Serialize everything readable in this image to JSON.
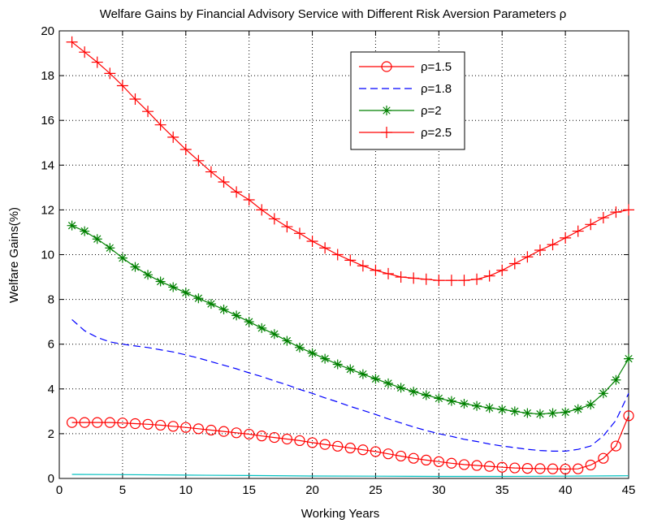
{
  "chart_data": {
    "type": "line",
    "title": "Welfare Gains by Financial Advisory Service with Different Risk Aversion Parameters ρ",
    "xlabel": "Working Years",
    "ylabel": "Welfare Gains(%)",
    "xlim": [
      0,
      45
    ],
    "ylim": [
      0,
      20
    ],
    "xticks": [
      0,
      5,
      10,
      15,
      20,
      25,
      30,
      35,
      40,
      45
    ],
    "yticks": [
      0,
      2,
      4,
      6,
      8,
      10,
      12,
      14,
      16,
      18,
      20
    ],
    "grid": true,
    "legend_position": "top-right",
    "series": [
      {
        "name": "ρ=1.5",
        "color": "#ff0000",
        "line_style": "solid",
        "marker": "circle",
        "x": [
          1,
          2,
          3,
          4,
          5,
          6,
          7,
          8,
          9,
          10,
          11,
          12,
          13,
          14,
          15,
          16,
          17,
          18,
          19,
          20,
          21,
          22,
          23,
          24,
          25,
          26,
          27,
          28,
          29,
          30,
          31,
          32,
          33,
          34,
          35,
          36,
          37,
          38,
          39,
          40,
          41,
          42,
          43,
          44,
          45
        ],
        "y": [
          2.5,
          2.5,
          2.5,
          2.5,
          2.48,
          2.45,
          2.42,
          2.38,
          2.33,
          2.28,
          2.22,
          2.16,
          2.1,
          2.04,
          1.98,
          1.9,
          1.83,
          1.76,
          1.69,
          1.6,
          1.52,
          1.44,
          1.36,
          1.28,
          1.2,
          1.1,
          1.0,
          0.9,
          0.82,
          0.75,
          0.68,
          0.62,
          0.58,
          0.54,
          0.5,
          0.47,
          0.45,
          0.44,
          0.43,
          0.42,
          0.43,
          0.6,
          0.9,
          1.45,
          2.8
        ]
      },
      {
        "name": "ρ=1.8",
        "color": "#0000ff",
        "line_style": "dashed",
        "marker": "none",
        "x": [
          1,
          2,
          3,
          4,
          5,
          6,
          7,
          8,
          9,
          10,
          11,
          12,
          13,
          14,
          15,
          16,
          17,
          18,
          19,
          20,
          21,
          22,
          23,
          24,
          25,
          26,
          27,
          28,
          29,
          30,
          31,
          32,
          33,
          34,
          35,
          36,
          37,
          38,
          39,
          40,
          41,
          42,
          43,
          44,
          45
        ],
        "y": [
          7.1,
          6.6,
          6.3,
          6.1,
          6.0,
          5.92,
          5.85,
          5.75,
          5.65,
          5.52,
          5.38,
          5.22,
          5.06,
          4.9,
          4.72,
          4.55,
          4.36,
          4.18,
          3.98,
          3.8,
          3.6,
          3.42,
          3.22,
          3.04,
          2.86,
          2.66,
          2.48,
          2.3,
          2.14,
          2.0,
          1.88,
          1.75,
          1.65,
          1.54,
          1.45,
          1.38,
          1.3,
          1.25,
          1.22,
          1.22,
          1.3,
          1.45,
          1.9,
          2.6,
          3.8
        ]
      },
      {
        "name": "ρ=2",
        "color": "#008000",
        "line_style": "solid",
        "marker": "asterisk",
        "x": [
          1,
          2,
          3,
          4,
          5,
          6,
          7,
          8,
          9,
          10,
          11,
          12,
          13,
          14,
          15,
          16,
          17,
          18,
          19,
          20,
          21,
          22,
          23,
          24,
          25,
          26,
          27,
          28,
          29,
          30,
          31,
          32,
          33,
          34,
          35,
          36,
          37,
          38,
          39,
          40,
          41,
          42,
          43,
          44,
          45
        ],
        "y": [
          11.3,
          11.05,
          10.7,
          10.3,
          9.85,
          9.45,
          9.1,
          8.8,
          8.55,
          8.3,
          8.05,
          7.8,
          7.55,
          7.28,
          7.0,
          6.72,
          6.45,
          6.15,
          5.85,
          5.6,
          5.35,
          5.1,
          4.88,
          4.66,
          4.45,
          4.25,
          4.05,
          3.88,
          3.72,
          3.58,
          3.46,
          3.34,
          3.24,
          3.15,
          3.08,
          3.0,
          2.92,
          2.88,
          2.92,
          2.96,
          3.1,
          3.3,
          3.8,
          4.4,
          5.35
        ]
      },
      {
        "name": "ρ=2.5",
        "color": "#ff0000",
        "line_style": "solid",
        "marker": "plus",
        "x": [
          1,
          2,
          3,
          4,
          5,
          6,
          7,
          8,
          9,
          10,
          11,
          12,
          13,
          14,
          15,
          16,
          17,
          18,
          19,
          20,
          21,
          22,
          23,
          24,
          25,
          26,
          27,
          28,
          29,
          30,
          31,
          32,
          33,
          34,
          35,
          36,
          37,
          38,
          39,
          40,
          41,
          42,
          43,
          44,
          45
        ],
        "y": [
          19.5,
          19.05,
          18.6,
          18.1,
          17.55,
          16.95,
          16.4,
          15.8,
          15.25,
          14.7,
          14.2,
          13.7,
          13.25,
          12.8,
          12.45,
          12.0,
          11.6,
          11.25,
          10.95,
          10.6,
          10.3,
          10.0,
          9.75,
          9.5,
          9.3,
          9.15,
          9.0,
          8.95,
          8.9,
          8.85,
          8.85,
          8.85,
          8.9,
          9.05,
          9.3,
          9.6,
          9.9,
          10.2,
          10.45,
          10.75,
          11.05,
          11.35,
          11.65,
          11.9,
          12.0
        ]
      },
      {
        "color": "#00bfbf",
        "line_style": "solid",
        "marker": "none",
        "x": [
          1,
          5,
          10,
          15,
          20,
          25,
          30,
          35,
          40,
          45
        ],
        "y": [
          0.18,
          0.17,
          0.15,
          0.13,
          0.11,
          0.1,
          0.09,
          0.09,
          0.1,
          0.12
        ]
      }
    ]
  }
}
